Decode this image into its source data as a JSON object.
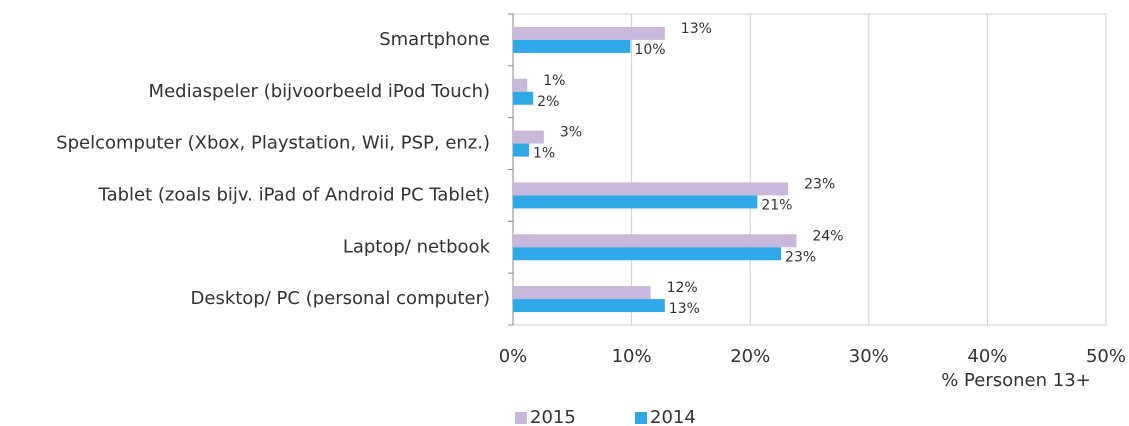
{
  "chart_data": {
    "type": "hbar",
    "categories": [
      "Smartphone",
      "Mediaspeler (bijvoorbeeld iPod Touch)",
      "Spelcomputer (Xbox, Playstation, Wii, PSP, enz.)",
      "Tablet (zoals bijv. iPad of Android PC Tablet)",
      "Laptop/ netbook",
      "Desktop/ PC (personal computer)"
    ],
    "series": [
      {
        "name": "2015",
        "color": "#c9b8dc",
        "values": [
          12.8,
          1.2,
          2.6,
          23.2,
          23.9,
          11.6
        ],
        "value_labels": [
          "13%",
          "1%",
          "3%",
          "23%",
          "24%",
          "12%"
        ]
      },
      {
        "name": "2014",
        "color": "#2ea8e6",
        "values": [
          9.9,
          1.7,
          1.35,
          20.6,
          22.6,
          12.8
        ],
        "value_labels": [
          "10%",
          "2%",
          "1%",
          "21%",
          "23%",
          "13%"
        ]
      }
    ],
    "xlim": [
      0,
      50
    ],
    "xticks": [
      {
        "value": 0,
        "label": "0%"
      },
      {
        "value": 10,
        "label": "10%"
      },
      {
        "value": 20,
        "label": "20%"
      },
      {
        "value": 30,
        "label": "30%"
      },
      {
        "value": 40,
        "label": "40%"
      },
      {
        "value": 50,
        "label": "50%"
      }
    ],
    "grid": true,
    "legend": "bottom-left",
    "annotation": "% Personen 13+"
  }
}
